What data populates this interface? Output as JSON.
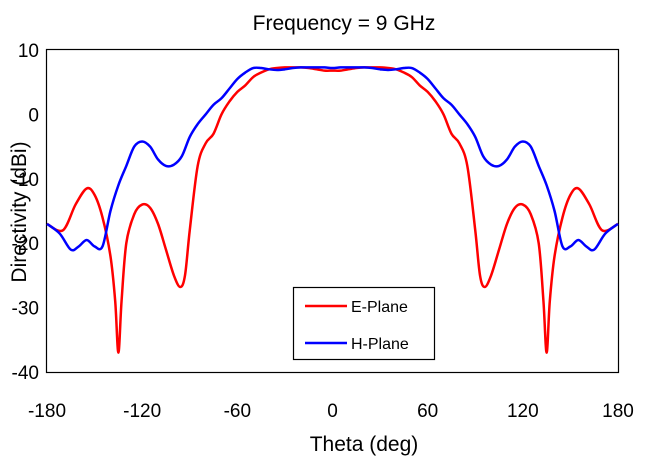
{
  "chart_data": {
    "type": "line",
    "title": "Frequency = 9 GHz",
    "xlabel": "Theta (deg)",
    "ylabel": "Directivity (dBi)",
    "xlim": [
      -180,
      180
    ],
    "ylim": [
      -40,
      10
    ],
    "xticks": [
      -180,
      -120,
      -60,
      0,
      60,
      120,
      180
    ],
    "yticks": [
      10,
      0,
      -10,
      -20,
      -30,
      -40
    ],
    "grid": false,
    "legend": "bottom-center",
    "series": [
      {
        "name": "E-Plane",
        "color": "#ff0000",
        "x": [
          -180,
          -170,
          -162,
          -155,
          -150,
          -145,
          -140,
          -137,
          -135,
          -133,
          -130,
          -125,
          -120,
          -115,
          -110,
          -105,
          -100,
          -96,
          -93,
          -90,
          -85,
          -80,
          -75,
          -70,
          -65,
          -60,
          -55,
          -50,
          -45,
          -40,
          -35,
          -30,
          -25,
          -20,
          -15,
          -10,
          -5,
          0,
          5,
          10,
          15,
          20,
          25,
          30,
          35,
          40,
          45,
          50,
          55,
          60,
          65,
          70,
          75,
          80,
          85,
          90,
          93,
          96,
          100,
          105,
          110,
          115,
          120,
          125,
          130,
          133,
          135,
          137,
          140,
          145,
          150,
          155,
          162,
          170,
          180
        ],
        "y": [
          -17,
          -18,
          -14,
          -11.5,
          -12.5,
          -16,
          -22,
          -29,
          -37,
          -29,
          -20,
          -15.5,
          -14,
          -14.5,
          -17,
          -21,
          -25,
          -26.8,
          -25,
          -18,
          -8,
          -4.5,
          -3,
          0,
          2,
          3.5,
          4.5,
          5.8,
          6.5,
          7,
          7.2,
          7.3,
          7.3,
          7.3,
          7.2,
          7,
          6.8,
          6.8,
          6.8,
          7,
          7.2,
          7.3,
          7.3,
          7.3,
          7.2,
          7,
          6.5,
          5.8,
          4.5,
          3.5,
          2,
          0,
          -3,
          -4.5,
          -8,
          -18,
          -25,
          -26.8,
          -25,
          -21,
          -17,
          -14.5,
          -14,
          -15.5,
          -20,
          -29,
          -37,
          -29,
          -22,
          -16,
          -12.5,
          -11.5,
          -14,
          -18,
          -17
        ]
      },
      {
        "name": "H-Plane",
        "color": "#0000ff",
        "x": [
          -180,
          -172,
          -165,
          -160,
          -155,
          -150,
          -145,
          -140,
          -135,
          -130,
          -125,
          -120,
          -115,
          -110,
          -105,
          -100,
          -95,
          -90,
          -85,
          -80,
          -75,
          -70,
          -65,
          -60,
          -55,
          -50,
          -45,
          -40,
          -35,
          -30,
          -25,
          -20,
          -15,
          -10,
          -5,
          0,
          5,
          10,
          15,
          20,
          25,
          30,
          35,
          40,
          45,
          50,
          55,
          60,
          65,
          70,
          75,
          80,
          85,
          90,
          95,
          100,
          105,
          110,
          115,
          120,
          125,
          130,
          135,
          140,
          145,
          150,
          155,
          160,
          165,
          172,
          180
        ],
        "y": [
          -17,
          -18.5,
          -21,
          -20.5,
          -19.5,
          -20.5,
          -20.5,
          -15,
          -11,
          -8,
          -5,
          -4.2,
          -5,
          -7,
          -8,
          -7.8,
          -6.5,
          -3.5,
          -1.5,
          0,
          1.5,
          2.5,
          4,
          5.5,
          6.5,
          7.2,
          7.2,
          7,
          6.9,
          7,
          7.2,
          7.3,
          7.3,
          7.3,
          7.3,
          7.2,
          7.3,
          7.3,
          7.3,
          7.3,
          7.2,
          7,
          6.9,
          7,
          7.2,
          7.2,
          6.5,
          5.5,
          4,
          2.5,
          1.5,
          0,
          -1.5,
          -3.5,
          -6.5,
          -7.8,
          -8,
          -7,
          -5,
          -4.2,
          -5,
          -8,
          -11,
          -15,
          -20.5,
          -20.5,
          -19.5,
          -20.5,
          -21,
          -18.5,
          -17
        ]
      }
    ]
  }
}
